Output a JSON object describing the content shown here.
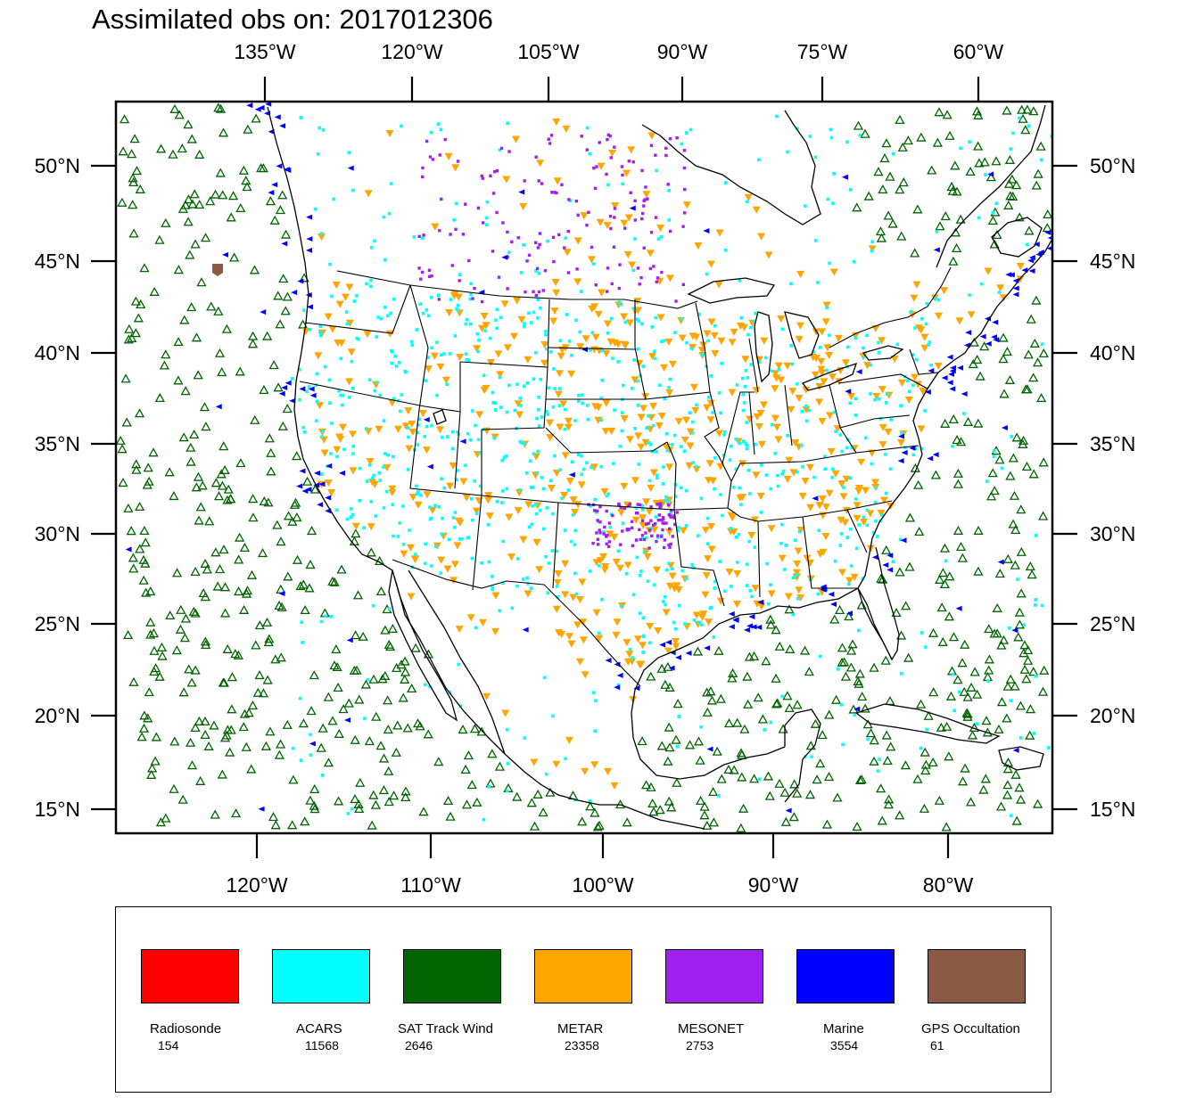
{
  "title": "Assimilated obs on: 2017012306",
  "map": {
    "top_lon_labels": [
      "135°W",
      "120°W",
      "105°W",
      "90°W",
      "75°W",
      "60°W"
    ],
    "bottom_lon_labels": [
      "120°W",
      "110°W",
      "100°W",
      "90°W",
      "80°W"
    ],
    "left_lat_labels": [
      "50°N",
      "45°N",
      "40°N",
      "35°N",
      "30°N",
      "25°N",
      "20°N",
      "15°N"
    ],
    "right_lat_labels": [
      "50°N",
      "45°N",
      "40°N",
      "35°N",
      "30°N",
      "25°N",
      "20°N",
      "15°N"
    ],
    "coastline_color": "#000000",
    "region_description": "CONUS Lambert map with state boundaries, Mexico, Caribbean"
  },
  "legend": {
    "items": [
      {
        "name": "Radiosonde",
        "count": "154",
        "color": "#ff0000"
      },
      {
        "name": "ACARS",
        "count": "11568",
        "color": "#00ffff"
      },
      {
        "name": "SAT Track Wind",
        "count": "2646",
        "color": "#006400"
      },
      {
        "name": "METAR",
        "count": "23358",
        "color": "#ffa500"
      },
      {
        "name": "MESONET",
        "count": "2753",
        "color": "#a020f0"
      },
      {
        "name": "Marine",
        "count": "3554",
        "color": "#0000ff"
      },
      {
        "name": "GPS Occultation",
        "count": "61",
        "color": "#8b5a45"
      }
    ]
  }
}
